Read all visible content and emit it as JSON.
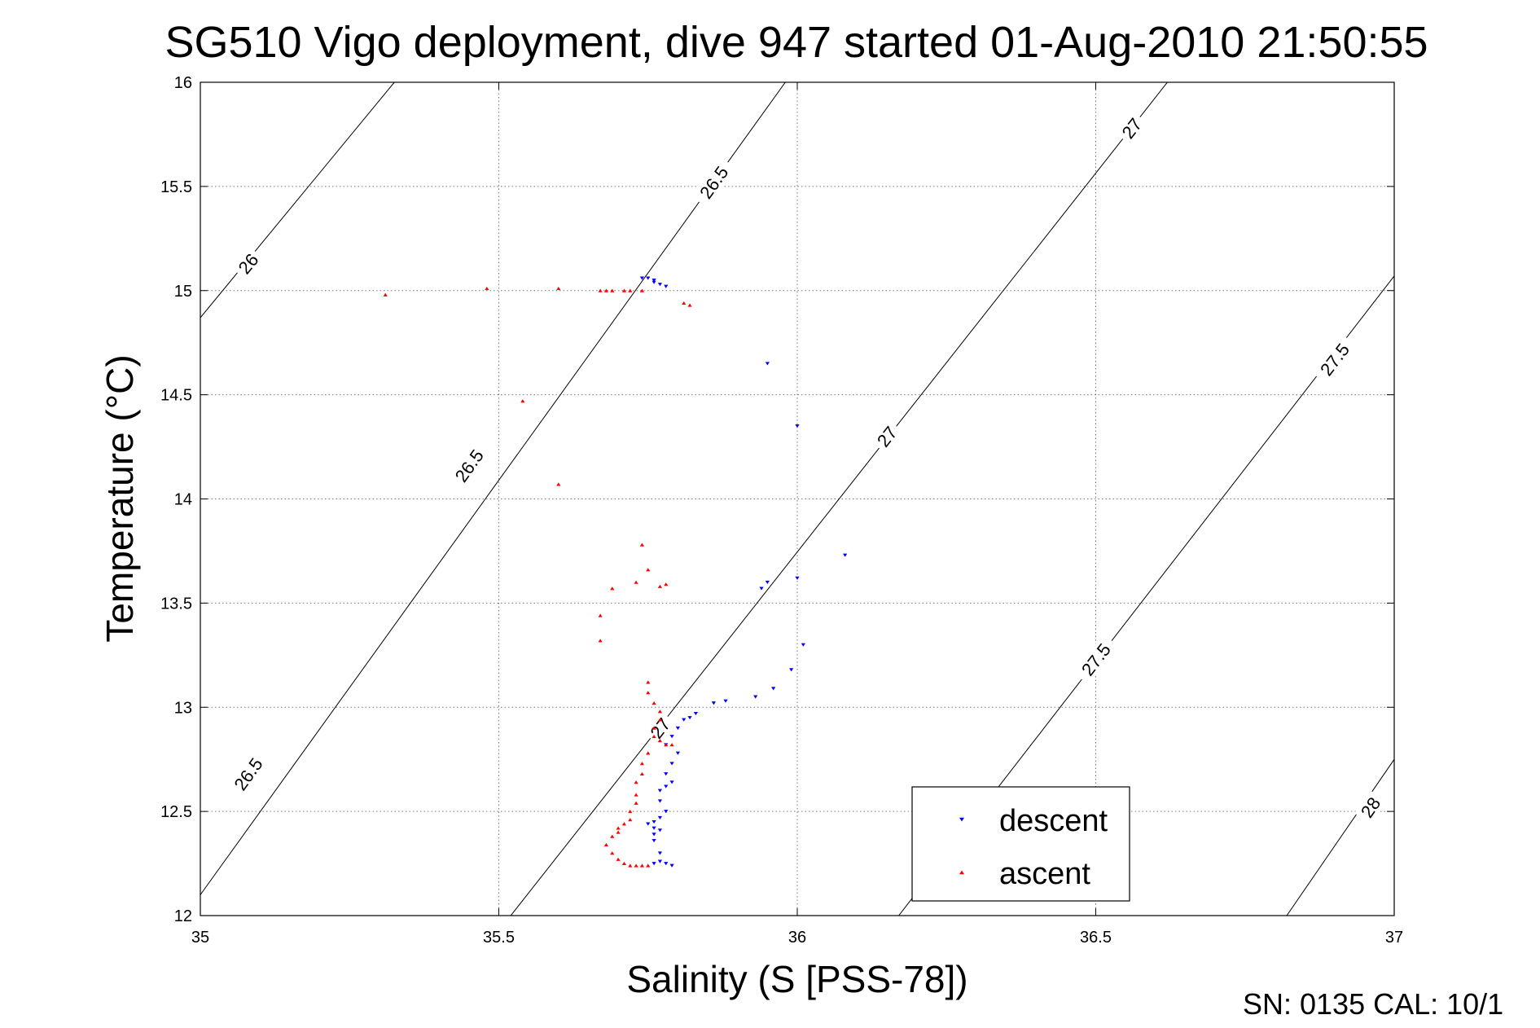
{
  "chart_data": {
    "type": "scatter",
    "title": "SG510 Vigo deployment, dive 947 started 01-Aug-2010 21:50:55",
    "xlabel": "Salinity (S [PSS-78])",
    "ylabel": "Temperature (°C)",
    "xlim": [
      35,
      37
    ],
    "ylim": [
      12,
      16
    ],
    "xticks": [
      "35",
      "35.5",
      "36",
      "36.5",
      "37"
    ],
    "yticks": [
      "12",
      "12.5",
      "13",
      "13.5",
      "14",
      "14.5",
      "15",
      "15.5",
      "16"
    ],
    "grid": true,
    "legend_position": "bottom-right",
    "footer": "SN: 0135  CAL: 10/1",
    "density_contours": [
      {
        "sigma": 26.0,
        "label": "26",
        "points": [
          [
            35.0,
            14.87
          ],
          [
            35.325,
            16.0
          ]
        ],
        "label_positions": [
          [
            35.08,
            15.13
          ]
        ]
      },
      {
        "sigma": 26.5,
        "label": "26.5",
        "points": [
          [
            35.0,
            12.1
          ],
          [
            35.98,
            16.0
          ]
        ],
        "label_positions": [
          [
            35.08,
            12.68
          ],
          [
            35.45,
            14.16
          ],
          [
            35.86,
            15.52
          ]
        ]
      },
      {
        "sigma": 27.0,
        "label": "27",
        "points": [
          [
            35.52,
            12.0
          ],
          [
            36.62,
            16.0
          ]
        ],
        "label_positions": [
          [
            35.77,
            12.9
          ],
          [
            36.15,
            14.3
          ],
          [
            36.56,
            15.78
          ]
        ]
      },
      {
        "sigma": 27.5,
        "label": "27.5",
        "points": [
          [
            36.17,
            12.0
          ],
          [
            37.0,
            15.07
          ]
        ],
        "label_positions": [
          [
            36.5,
            13.23
          ],
          [
            36.9,
            14.67
          ]
        ]
      },
      {
        "sigma": 28.0,
        "label": "28",
        "points": [
          [
            36.82,
            12.0
          ],
          [
            37.0,
            12.75
          ]
        ],
        "label_positions": [
          [
            36.96,
            12.52
          ]
        ]
      }
    ],
    "series": [
      {
        "name": "descent",
        "color": "#0000ff",
        "marker": "triangle-down",
        "points": [
          [
            35.74,
            15.06
          ],
          [
            35.75,
            15.06
          ],
          [
            35.76,
            15.05
          ],
          [
            35.76,
            15.04
          ],
          [
            35.77,
            15.03
          ],
          [
            35.78,
            15.02
          ],
          [
            35.95,
            14.65
          ],
          [
            36.0,
            14.35
          ],
          [
            36.08,
            13.73
          ],
          [
            36.0,
            13.62
          ],
          [
            35.95,
            13.6
          ],
          [
            35.94,
            13.57
          ],
          [
            36.01,
            13.3
          ],
          [
            35.99,
            13.18
          ],
          [
            35.96,
            13.09
          ],
          [
            35.93,
            13.05
          ],
          [
            35.88,
            13.03
          ],
          [
            35.86,
            13.02
          ],
          [
            35.83,
            12.97
          ],
          [
            35.82,
            12.95
          ],
          [
            35.81,
            12.94
          ],
          [
            35.8,
            12.9
          ],
          [
            35.79,
            12.86
          ],
          [
            35.78,
            12.82
          ],
          [
            35.8,
            12.78
          ],
          [
            35.79,
            12.73
          ],
          [
            35.78,
            12.68
          ],
          [
            35.79,
            12.64
          ],
          [
            35.78,
            12.62
          ],
          [
            35.77,
            12.6
          ],
          [
            35.77,
            12.55
          ],
          [
            35.78,
            12.5
          ],
          [
            35.77,
            12.47
          ],
          [
            35.76,
            12.45
          ],
          [
            35.75,
            12.44
          ],
          [
            35.76,
            12.42
          ],
          [
            35.77,
            12.41
          ],
          [
            35.76,
            12.39
          ],
          [
            35.76,
            12.36
          ],
          [
            35.77,
            12.3
          ],
          [
            35.77,
            12.26
          ],
          [
            35.78,
            12.25
          ],
          [
            35.79,
            12.24
          ],
          [
            35.76,
            12.25
          ]
        ]
      },
      {
        "name": "ascent",
        "color": "#ff0000",
        "marker": "triangle-up",
        "points": [
          [
            35.31,
            14.98
          ],
          [
            35.48,
            15.01
          ],
          [
            35.6,
            15.01
          ],
          [
            35.67,
            15.0
          ],
          [
            35.68,
            15.0
          ],
          [
            35.69,
            15.0
          ],
          [
            35.71,
            15.0
          ],
          [
            35.72,
            15.0
          ],
          [
            35.74,
            15.0
          ],
          [
            35.81,
            14.94
          ],
          [
            35.82,
            14.93
          ],
          [
            35.54,
            14.47
          ],
          [
            35.6,
            14.07
          ],
          [
            35.74,
            13.78
          ],
          [
            35.75,
            13.66
          ],
          [
            35.73,
            13.6
          ],
          [
            35.77,
            13.58
          ],
          [
            35.78,
            13.59
          ],
          [
            35.69,
            13.57
          ],
          [
            35.67,
            13.44
          ],
          [
            35.67,
            13.32
          ],
          [
            35.75,
            13.12
          ],
          [
            35.75,
            13.07
          ],
          [
            35.76,
            13.02
          ],
          [
            35.77,
            12.98
          ],
          [
            35.77,
            12.94
          ],
          [
            35.76,
            12.9
          ],
          [
            35.76,
            12.86
          ],
          [
            35.77,
            12.84
          ],
          [
            35.78,
            12.82
          ],
          [
            35.79,
            12.82
          ],
          [
            35.75,
            12.78
          ],
          [
            35.74,
            12.73
          ],
          [
            35.74,
            12.68
          ],
          [
            35.73,
            12.64
          ],
          [
            35.73,
            12.58
          ],
          [
            35.73,
            12.54
          ],
          [
            35.72,
            12.5
          ],
          [
            35.72,
            12.46
          ],
          [
            35.71,
            12.44
          ],
          [
            35.7,
            12.42
          ],
          [
            35.7,
            12.4
          ],
          [
            35.69,
            12.38
          ],
          [
            35.68,
            12.34
          ],
          [
            35.69,
            12.3
          ],
          [
            35.7,
            12.27
          ],
          [
            35.71,
            12.25
          ],
          [
            35.72,
            12.24
          ],
          [
            35.73,
            12.24
          ],
          [
            35.74,
            12.24
          ],
          [
            35.75,
            12.24
          ]
        ]
      }
    ]
  }
}
